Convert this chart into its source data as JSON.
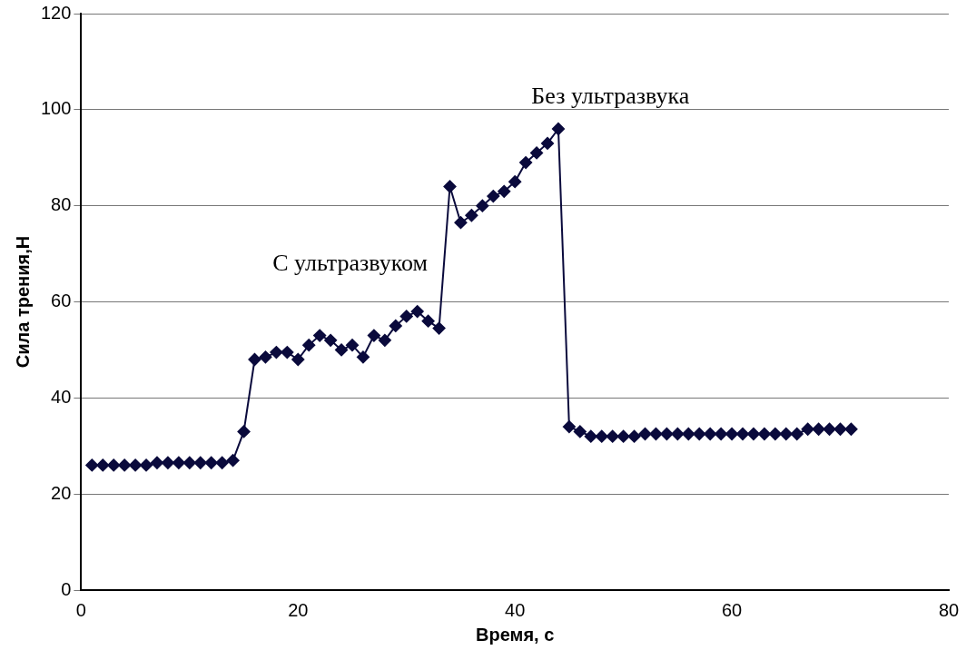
{
  "chart_data": {
    "type": "line",
    "xlabel": "Время, с",
    "ylabel": "Сила трения,Н",
    "x": [
      1,
      2,
      3,
      4,
      5,
      6,
      7,
      8,
      9,
      10,
      11,
      12,
      13,
      14,
      15,
      16,
      17,
      18,
      19,
      20,
      21,
      22,
      23,
      24,
      25,
      26,
      27,
      28,
      29,
      30,
      31,
      32,
      33,
      34,
      35,
      36,
      37,
      38,
      39,
      40,
      41,
      42,
      43,
      44,
      45,
      46,
      47,
      48,
      49,
      50,
      51,
      52,
      53,
      54,
      55,
      56,
      57,
      58,
      59,
      60,
      61,
      62,
      63,
      64,
      65,
      66,
      67,
      68,
      69,
      70,
      71
    ],
    "series": [
      {
        "color": "#0a0a3c",
        "values": [
          26,
          26,
          26,
          26,
          26,
          26,
          26.5,
          26.5,
          26.5,
          26.5,
          26.5,
          26.5,
          26.5,
          27,
          33,
          48,
          48.5,
          49.5,
          49.5,
          48,
          51,
          53,
          52,
          50,
          51,
          48.5,
          53,
          52,
          55,
          57,
          58,
          56,
          54.5,
          84,
          76.5,
          78,
          80,
          82,
          83,
          85,
          89,
          91,
          93,
          96,
          34,
          33,
          32,
          32,
          32,
          32,
          32,
          32.5,
          32.5,
          32.5,
          32.5,
          32.5,
          32.5,
          32.5,
          32.5,
          32.5,
          32.5,
          32.5,
          32.5,
          32.5,
          32.5,
          32.5,
          33.5,
          33.5,
          33.5,
          33.5,
          33.5
        ]
      }
    ],
    "xlim": [
      0,
      80
    ],
    "xticks": [
      0,
      20,
      40,
      60,
      80
    ],
    "ylim": [
      0,
      120
    ],
    "yticks": [
      0,
      20,
      40,
      60,
      80,
      100,
      120
    ],
    "grid": "y",
    "legend": false,
    "marker": "diamond",
    "line_style": "solid",
    "annotations": [
      "С ультразвуком",
      "Без ультразвука"
    ]
  }
}
